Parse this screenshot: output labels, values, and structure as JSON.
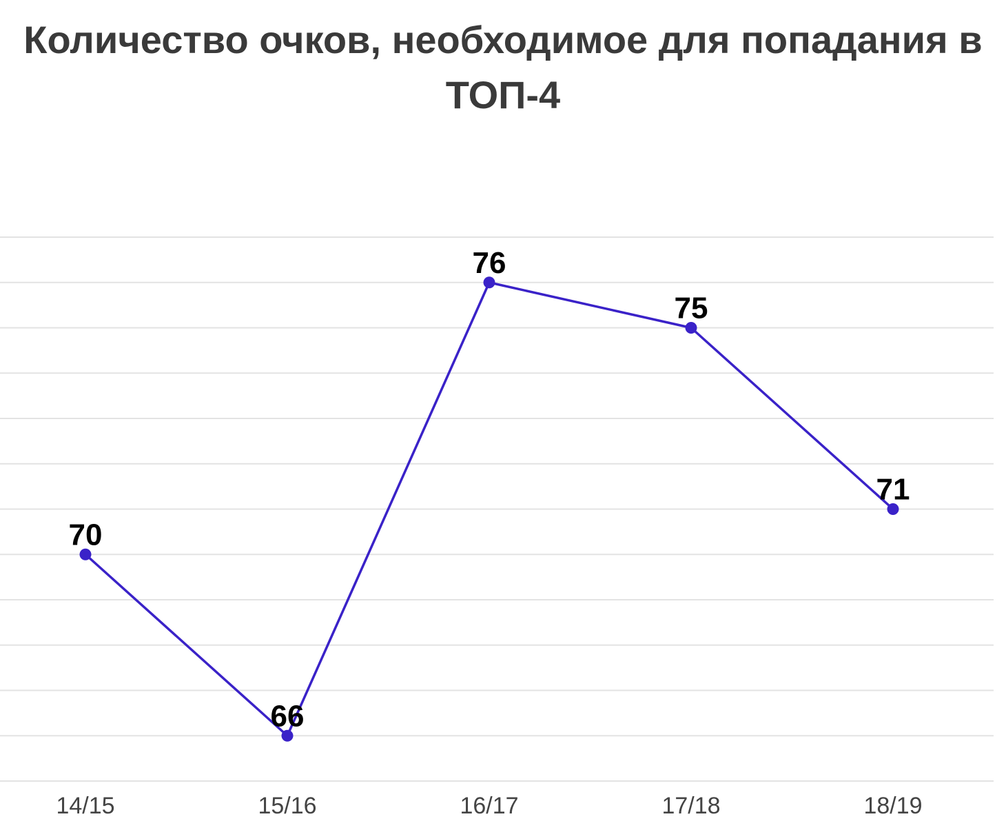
{
  "chart_data": {
    "type": "line",
    "title": "Количество очков, необходимое для попадания в ТОП-4",
    "categories": [
      "14/15",
      "15/16",
      "16/17",
      "17/18",
      "18/19"
    ],
    "series": [
      {
        "values": [
          70,
          66,
          76,
          75,
          71
        ]
      }
    ],
    "ylim": [
      65,
      77
    ],
    "grid": true,
    "legend": "none",
    "colors": {
      "line": "#3a22c8",
      "marker": "#3a22c8",
      "grid": "#e3e3e3"
    }
  }
}
